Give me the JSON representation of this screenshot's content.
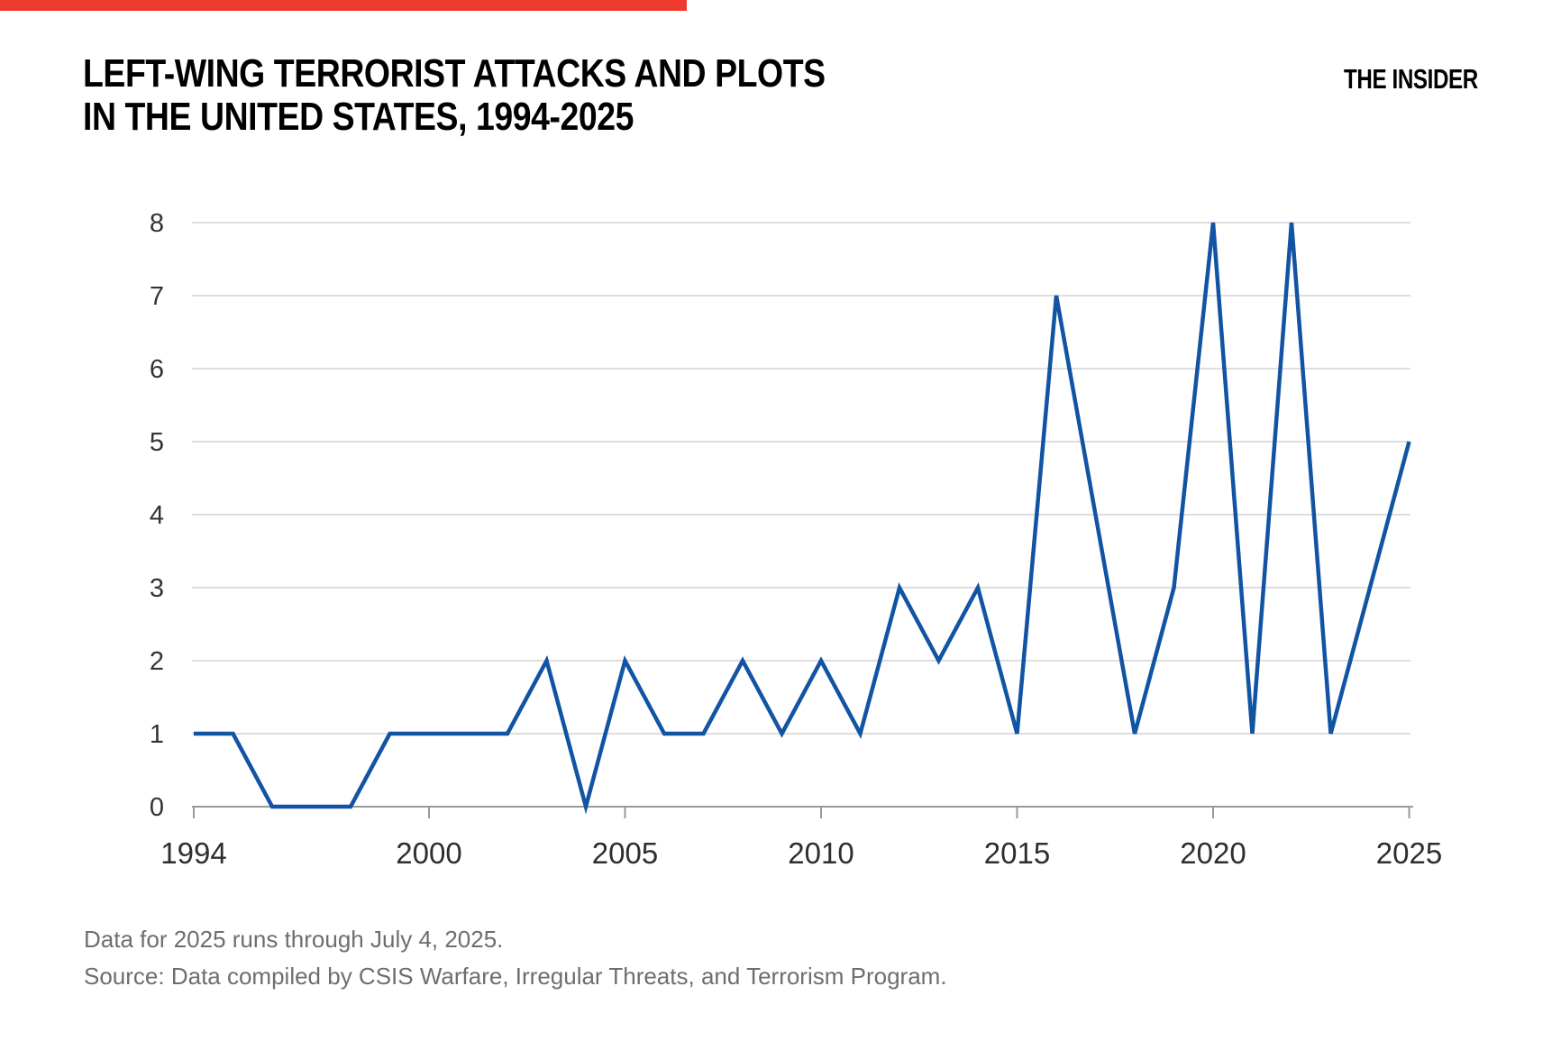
{
  "progress_bar": {
    "color": "#ee3b2e",
    "width_percent": 44
  },
  "header": {
    "title_line1": "LEFT-WING TERRORIST ATTACKS AND PLOTS",
    "title_line2": "IN THE UNITED STATES, 1994-2025",
    "logo": "THE INSIDER"
  },
  "chart_data": {
    "type": "line",
    "title": "Left-wing terrorist attacks and plots in the United States, 1994-2025",
    "x": [
      1994,
      1995,
      1996,
      1997,
      1998,
      1999,
      2000,
      2001,
      2002,
      2003,
      2004,
      2005,
      2006,
      2007,
      2008,
      2009,
      2010,
      2011,
      2012,
      2013,
      2014,
      2015,
      2016,
      2017,
      2018,
      2019,
      2020,
      2021,
      2022,
      2023,
      2024,
      2025
    ],
    "values": [
      1,
      1,
      0,
      0,
      0,
      1,
      1,
      1,
      1,
      2,
      0,
      2,
      1,
      1,
      2,
      1,
      2,
      1,
      3,
      2,
      3,
      1,
      7,
      4,
      1,
      3,
      8,
      1,
      8,
      1,
      3,
      5
    ],
    "xticks": [
      1994,
      2000,
      2005,
      2010,
      2015,
      2020,
      2025
    ],
    "yticks": [
      0,
      1,
      2,
      3,
      4,
      5,
      6,
      7,
      8
    ],
    "ylim": [
      0,
      8
    ],
    "xlabel": "",
    "ylabel": "",
    "grid": "horizontal",
    "legend": "none",
    "colors": {
      "line": "#1254a4",
      "grid": "#d4d4d4",
      "axis": "#999999"
    }
  },
  "footnotes": {
    "note": "Data for 2025 runs through July 4, 2025.",
    "source": "Source: Data compiled by CSIS Warfare, Irregular Threats, and Terrorism Program."
  }
}
